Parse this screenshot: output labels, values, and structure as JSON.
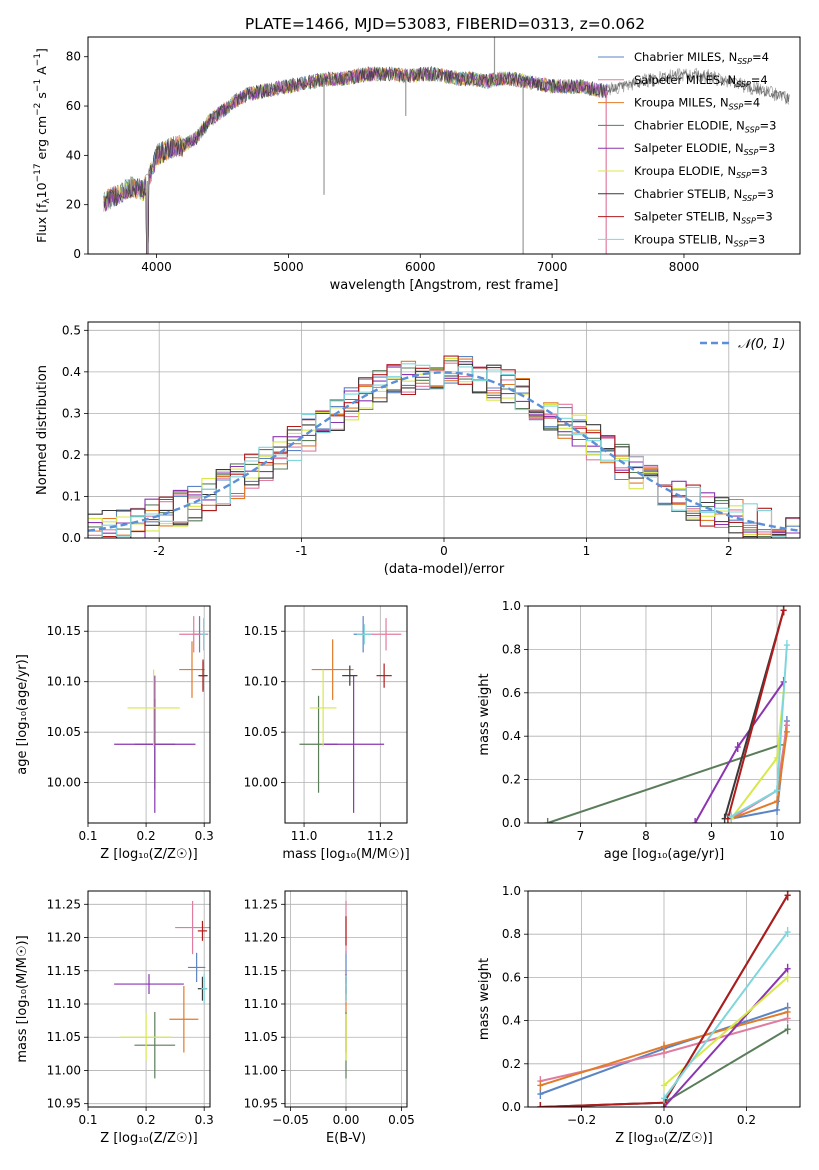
{
  "figure": {
    "title": "PLATE=1466, MJD=53083, FIBERID=0313, z=0.062"
  },
  "colors": {
    "chabrier_miles": "#5b84c4",
    "salpeter_miles": "#e07ca0",
    "kroupa_miles": "#e07b2a",
    "chabrier_elodie": "#5a7d5a",
    "salpeter_elodie": "#8b35b0",
    "kroupa_elodie": "#d8e84a",
    "chabrier_stelib": "#3a3a3a",
    "salpeter_stelib": "#b01c1c",
    "kroupa_stelib": "#7fd6dc",
    "gaussian": "#5b8fd6",
    "grid": "#b0b0b0",
    "data_gray": "#a0a0a0"
  },
  "chart_data": [
    {
      "id": "spectrum",
      "type": "line",
      "xlabel": "wavelength [Angstrom, rest frame]",
      "ylabel": "Flux [f_λ 10^-17 erg cm^-2 s^-1 A^-1]",
      "xlim": [
        3480,
        8880
      ],
      "ylim": [
        0,
        88
      ],
      "xticks": [
        4000,
        5000,
        6000,
        7000,
        8000
      ],
      "yticks": [
        0,
        20,
        40,
        60,
        80
      ],
      "grid": false,
      "legend_position": "top-right",
      "legend": [
        {
          "name": "Chabrier MILES, N",
          "sub": "SSP",
          "suffix": "=4",
          "color_key": "chabrier_miles"
        },
        {
          "name": "Salpeter MILES, N",
          "sub": "SSP",
          "suffix": "=4",
          "color_key": "salpeter_miles"
        },
        {
          "name": "Kroupa MILES, N",
          "sub": "SSP",
          "suffix": "=4",
          "color_key": "kroupa_miles"
        },
        {
          "name": "Chabrier ELODIE, N",
          "sub": "SSP",
          "suffix": "=3",
          "color_key": "chabrier_elodie"
        },
        {
          "name": "Salpeter ELODIE, N",
          "sub": "SSP",
          "suffix": "=3",
          "color_key": "salpeter_elodie"
        },
        {
          "name": "Kroupa ELODIE, N",
          "sub": "SSP",
          "suffix": "=3",
          "color_key": "kroupa_elodie"
        },
        {
          "name": "Chabrier STELIB, N",
          "sub": "SSP",
          "suffix": "=3",
          "color_key": "chabrier_stelib"
        },
        {
          "name": "Salpeter STELIB, N",
          "sub": "SSP",
          "suffix": "=3",
          "color_key": "salpeter_stelib"
        },
        {
          "name": "Kroupa STELIB, N",
          "sub": "SSP",
          "suffix": "=3",
          "color_key": "kroupa_stelib"
        }
      ],
      "continuum": {
        "x": [
          3600,
          3700,
          3800,
          3900,
          3950,
          4000,
          4100,
          4200,
          4300,
          4400,
          4500,
          4600,
          4700,
          4800,
          4900,
          5000,
          5100,
          5200,
          5300,
          5400,
          5500,
          5600,
          5700,
          5800,
          5900,
          6000,
          6100,
          6200,
          6300,
          6400,
          6500,
          6600,
          6700,
          6800,
          6900,
          7000,
          7100,
          7200,
          7300,
          7400
        ],
        "y": [
          21,
          24,
          27,
          26,
          32,
          40,
          43,
          44,
          47,
          54,
          58,
          62,
          65,
          66,
          67,
          68,
          69,
          70,
          71,
          71,
          72,
          73,
          73,
          73,
          72,
          73,
          73,
          72,
          71,
          71,
          70,
          71,
          71,
          70,
          69,
          68,
          68,
          68,
          67,
          66
        ]
      },
      "features": [
        {
          "x": 3930,
          "y": 0
        },
        {
          "x": 5270,
          "y": 24
        },
        {
          "x": 5890,
          "y": 56
        },
        {
          "x": 6563,
          "y": 88
        },
        {
          "x": 6780,
          "y": 0
        },
        {
          "x": 7410,
          "y": 0
        }
      ],
      "tail": {
        "x": [
          7400,
          7600,
          7800,
          8000,
          8200,
          8400,
          8600,
          8800
        ],
        "y": [
          66,
          69,
          71,
          73,
          72,
          69,
          66,
          63
        ]
      }
    },
    {
      "id": "residual_hist",
      "type": "bar",
      "xlabel": "(data-model)/error",
      "ylabel": "Normed distribution",
      "xlim": [
        -2.5,
        2.5
      ],
      "ylim": [
        0,
        0.52
      ],
      "xticks": [
        -2,
        -1,
        0,
        1,
        2
      ],
      "yticks": [
        0.0,
        0.1,
        0.2,
        0.3,
        0.4,
        0.5
      ],
      "grid": true,
      "legend_position": "top-right",
      "legend": [
        {
          "name": "𝒩(0, 1)",
          "color_key": "gaussian",
          "style": "dashed"
        }
      ],
      "bin_width": 0.1,
      "bin_start": -2.5
    },
    {
      "id": "age_vs_Z",
      "type": "scatter",
      "xlabel": "Z [log₁₀(Z/Z☉)]",
      "ylabel": "age  [log₁₀(age/yr)]",
      "xlim": [
        0.1,
        0.31
      ],
      "ylim": [
        9.96,
        10.175
      ],
      "xticks": [
        0.1,
        0.2,
        0.3
      ],
      "xtick_labels": [
        "0.1",
        "0.2",
        "0.3"
      ],
      "yticks": [
        10.0,
        10.05,
        10.1,
        10.15
      ],
      "ytick_labels": [
        "10.00",
        "10.05",
        "10.10",
        "10.15"
      ],
      "grid": true,
      "points": [
        {
          "key": "chabrier_miles",
          "x": 0.292,
          "y": 10.147,
          "xerr": 0.012,
          "yerr": 0.018
        },
        {
          "key": "salpeter_miles",
          "x": 0.282,
          "y": 10.147,
          "xerr": 0.025,
          "yerr": 0.018
        },
        {
          "key": "kroupa_miles",
          "x": 0.279,
          "y": 10.112,
          "xerr": 0.022,
          "yerr": 0.028
        },
        {
          "key": "chabrier_elodie",
          "x": 0.215,
          "y": 10.038,
          "xerr": 0.035,
          "yerr": 0.045
        },
        {
          "key": "salpeter_elodie",
          "x": 0.215,
          "y": 10.038,
          "xerr": 0.07,
          "yerr": 0.068
        },
        {
          "key": "kroupa_elodie",
          "x": 0.213,
          "y": 10.074,
          "xerr": 0.045,
          "yerr": 0.038
        },
        {
          "key": "chabrier_stelib",
          "x": 0.298,
          "y": 10.106,
          "xerr": 0.008,
          "yerr": 0.014
        },
        {
          "key": "salpeter_stelib",
          "x": 0.298,
          "y": 10.106,
          "xerr": 0.006,
          "yerr": 0.016
        },
        {
          "key": "kroupa_stelib",
          "x": 0.299,
          "y": 10.147,
          "xerr": 0.005,
          "yerr": 0.016
        }
      ]
    },
    {
      "id": "age_vs_mass",
      "type": "scatter",
      "xlabel": "mass [log₁₀(M/M☉)]",
      "ylabel": "",
      "xlim": [
        10.95,
        11.27
      ],
      "ylim": [
        9.96,
        10.175
      ],
      "xticks": [
        11.0,
        11.2
      ],
      "xtick_labels": [
        "11.0",
        "11.2"
      ],
      "yticks": [
        10.0,
        10.05,
        10.1,
        10.15
      ],
      "ytick_labels": [
        "10.00",
        "10.05",
        "10.10",
        "10.15"
      ],
      "grid": true,
      "points": [
        {
          "key": "chabrier_miles",
          "x": 11.155,
          "y": 10.147,
          "xerr": 0.025,
          "yerr": 0.018
        },
        {
          "key": "salpeter_miles",
          "x": 11.215,
          "y": 10.147,
          "xerr": 0.04,
          "yerr": 0.016
        },
        {
          "key": "kroupa_miles",
          "x": 11.075,
          "y": 10.112,
          "xerr": 0.055,
          "yerr": 0.03
        },
        {
          "key": "chabrier_elodie",
          "x": 11.038,
          "y": 10.038,
          "xerr": 0.05,
          "yerr": 0.048
        },
        {
          "key": "salpeter_elodie",
          "x": 11.13,
          "y": 10.038,
          "xerr": 0.08,
          "yerr": 0.068
        },
        {
          "key": "kroupa_elodie",
          "x": 11.05,
          "y": 10.074,
          "xerr": 0.035,
          "yerr": 0.038
        },
        {
          "key": "chabrier_stelib",
          "x": 11.12,
          "y": 10.106,
          "xerr": 0.02,
          "yerr": 0.01
        },
        {
          "key": "salpeter_stelib",
          "x": 11.21,
          "y": 10.106,
          "xerr": 0.02,
          "yerr": 0.012
        },
        {
          "key": "kroupa_stelib",
          "x": 11.158,
          "y": 10.147,
          "xerr": 0.02,
          "yerr": 0.01
        }
      ]
    },
    {
      "id": "massweight_vs_age",
      "type": "line",
      "xlabel": "age  [log₁₀(age/yr)]",
      "ylabel": "mass weight",
      "xlim": [
        6.2,
        10.35
      ],
      "ylim": [
        0,
        1.0
      ],
      "xticks": [
        7,
        8,
        9,
        10
      ],
      "xtick_labels": [
        "7",
        "8",
        "9",
        "10"
      ],
      "yticks": [
        0.0,
        0.2,
        0.4,
        0.6,
        0.8,
        1.0
      ],
      "ytick_labels": [
        "0.0",
        "0.2",
        "0.4",
        "0.6",
        "0.8",
        "1.0"
      ],
      "grid": true,
      "series": [
        {
          "key": "chabrier_miles",
          "x": [
            9.3,
            10.0,
            10.15
          ],
          "y": [
            0.02,
            0.06,
            0.47
          ]
        },
        {
          "key": "salpeter_miles",
          "x": [
            9.3,
            10.0,
            10.15
          ],
          "y": [
            0.02,
            0.15,
            0.45
          ]
        },
        {
          "key": "kroupa_miles",
          "x": [
            9.3,
            10.0,
            10.15
          ],
          "y": [
            0.02,
            0.1,
            0.42
          ]
        },
        {
          "key": "chabrier_elodie",
          "x": [
            6.5,
            10.05
          ],
          "y": [
            0.0,
            0.36
          ]
        },
        {
          "key": "salpeter_elodie",
          "x": [
            8.75,
            9.4,
            10.1
          ],
          "y": [
            0.0,
            0.35,
            0.65
          ]
        },
        {
          "key": "kroupa_elodie",
          "x": [
            9.3,
            10.0,
            10.1
          ],
          "y": [
            0.02,
            0.3,
            0.6
          ]
        },
        {
          "key": "chabrier_stelib",
          "x": [
            9.2,
            10.1
          ],
          "y": [
            0.02,
            0.98
          ]
        },
        {
          "key": "salpeter_stelib",
          "x": [
            9.25,
            10.1
          ],
          "y": [
            0.02,
            0.98
          ]
        },
        {
          "key": "kroupa_stelib",
          "x": [
            9.3,
            10.0,
            10.15
          ],
          "y": [
            0.03,
            0.15,
            0.82
          ]
        }
      ]
    },
    {
      "id": "mass_vs_Z",
      "type": "scatter",
      "xlabel": "Z [log₁₀(Z/Z☉)]",
      "ylabel": "mass [log₁₀(M/M☉)]",
      "xlim": [
        0.1,
        0.31
      ],
      "ylim": [
        10.945,
        11.27
      ],
      "xticks": [
        0.1,
        0.2,
        0.3
      ],
      "xtick_labels": [
        "0.1",
        "0.2",
        "0.3"
      ],
      "yticks": [
        10.95,
        11.0,
        11.05,
        11.1,
        11.15,
        11.2,
        11.25
      ],
      "ytick_labels": [
        "10.95",
        "11.00",
        "11.05",
        "11.10",
        "11.15",
        "11.20",
        "11.25"
      ],
      "grid": true,
      "points": [
        {
          "key": "chabrier_miles",
          "x": 0.287,
          "y": 11.155,
          "xerr": 0.015,
          "yerr": 0.022
        },
        {
          "key": "salpeter_miles",
          "x": 0.28,
          "y": 11.215,
          "xerr": 0.03,
          "yerr": 0.04
        },
        {
          "key": "kroupa_miles",
          "x": 0.265,
          "y": 11.077,
          "xerr": 0.025,
          "yerr": 0.05
        },
        {
          "key": "chabrier_elodie",
          "x": 0.215,
          "y": 11.038,
          "xerr": 0.035,
          "yerr": 0.05
        },
        {
          "key": "salpeter_elodie",
          "x": 0.205,
          "y": 11.13,
          "xerr": 0.06,
          "yerr": 0.015
        },
        {
          "key": "kroupa_elodie",
          "x": 0.2,
          "y": 11.05,
          "xerr": 0.045,
          "yerr": 0.035
        },
        {
          "key": "chabrier_stelib",
          "x": 0.297,
          "y": 11.123,
          "xerr": 0.008,
          "yerr": 0.018
        },
        {
          "key": "salpeter_stelib",
          "x": 0.297,
          "y": 11.21,
          "xerr": 0.008,
          "yerr": 0.015
        },
        {
          "key": "kroupa_stelib",
          "x": 0.3,
          "y": 11.123,
          "xerr": 0.005,
          "yerr": 0.022
        }
      ]
    },
    {
      "id": "mass_vs_EBV",
      "type": "scatter",
      "xlabel": "E(B-V)",
      "ylabel": "",
      "xlim": [
        -0.055,
        0.055
      ],
      "ylim": [
        10.945,
        11.27
      ],
      "xticks": [
        -0.05,
        0.0,
        0.05
      ],
      "xtick_labels": [
        "−0.05",
        "0.00",
        "0.05"
      ],
      "yticks": [
        10.95,
        11.0,
        11.05,
        11.1,
        11.15,
        11.2,
        11.25
      ],
      "ytick_labels": [
        "10.95",
        "11.00",
        "11.05",
        "11.10",
        "11.15",
        "11.20",
        "11.25"
      ],
      "grid": true,
      "points": [
        {
          "key": "chabrier_miles",
          "x": 0.0,
          "y": 11.155,
          "xerr": 0.0,
          "yerr": 0.025
        },
        {
          "key": "salpeter_miles",
          "x": 0.0,
          "y": 11.215,
          "xerr": 0.0,
          "yerr": 0.04
        },
        {
          "key": "kroupa_miles",
          "x": 0.0,
          "y": 11.077,
          "xerr": 0.0,
          "yerr": 0.05
        },
        {
          "key": "chabrier_elodie",
          "x": 0.0,
          "y": 11.038,
          "xerr": 0.0,
          "yerr": 0.05
        },
        {
          "key": "salpeter_elodie",
          "x": 0.0,
          "y": 11.13,
          "xerr": 0.0,
          "yerr": 0.015
        },
        {
          "key": "kroupa_elodie",
          "x": 0.0,
          "y": 11.05,
          "xerr": 0.0,
          "yerr": 0.035
        },
        {
          "key": "chabrier_stelib",
          "x": 0.0,
          "y": 11.123,
          "xerr": 0.0,
          "yerr": 0.018
        },
        {
          "key": "salpeter_stelib",
          "x": 0.0,
          "y": 11.21,
          "xerr": 0.0,
          "yerr": 0.022
        },
        {
          "key": "kroupa_stelib",
          "x": 0.0,
          "y": 11.123,
          "xerr": 0.0,
          "yerr": 0.02
        }
      ]
    },
    {
      "id": "massweight_vs_Z",
      "type": "line",
      "xlabel": "Z [log₁₀(Z/Z☉)]",
      "ylabel": "mass weight",
      "xlim": [
        -0.33,
        0.33
      ],
      "ylim": [
        0,
        1.0
      ],
      "xticks": [
        -0.2,
        0.0,
        0.2
      ],
      "xtick_labels": [
        "−0.2",
        "0.0",
        "0.2"
      ],
      "yticks": [
        0.0,
        0.2,
        0.4,
        0.6,
        0.8,
        1.0
      ],
      "ytick_labels": [
        "0.0",
        "0.2",
        "0.4",
        "0.6",
        "0.8",
        "1.0"
      ],
      "grid": true,
      "series": [
        {
          "key": "chabrier_miles",
          "x": [
            -0.3,
            0.0,
            0.3
          ],
          "y": [
            0.06,
            0.27,
            0.46
          ]
        },
        {
          "key": "salpeter_miles",
          "x": [
            -0.3,
            0.0,
            0.3
          ],
          "y": [
            0.12,
            0.25,
            0.41
          ]
        },
        {
          "key": "kroupa_miles",
          "x": [
            -0.3,
            0.0,
            0.3
          ],
          "y": [
            0.1,
            0.28,
            0.44
          ]
        },
        {
          "key": "chabrier_elodie",
          "x": [
            0.0,
            0.3
          ],
          "y": [
            0.02,
            0.36
          ]
        },
        {
          "key": "salpeter_elodie",
          "x": [
            0.0,
            0.3
          ],
          "y": [
            0.0,
            0.64
          ]
        },
        {
          "key": "kroupa_elodie",
          "x": [
            0.0,
            0.3
          ],
          "y": [
            0.1,
            0.6
          ]
        },
        {
          "key": "chabrier_stelib",
          "x": [
            -0.3,
            0.0,
            0.3
          ],
          "y": [
            0.0,
            0.02,
            0.98
          ]
        },
        {
          "key": "salpeter_stelib",
          "x": [
            -0.3,
            0.0,
            0.3
          ],
          "y": [
            0.0,
            0.02,
            0.98
          ]
        },
        {
          "key": "kroupa_stelib",
          "x": [
            0.0,
            0.3
          ],
          "y": [
            0.04,
            0.81
          ]
        }
      ]
    }
  ]
}
